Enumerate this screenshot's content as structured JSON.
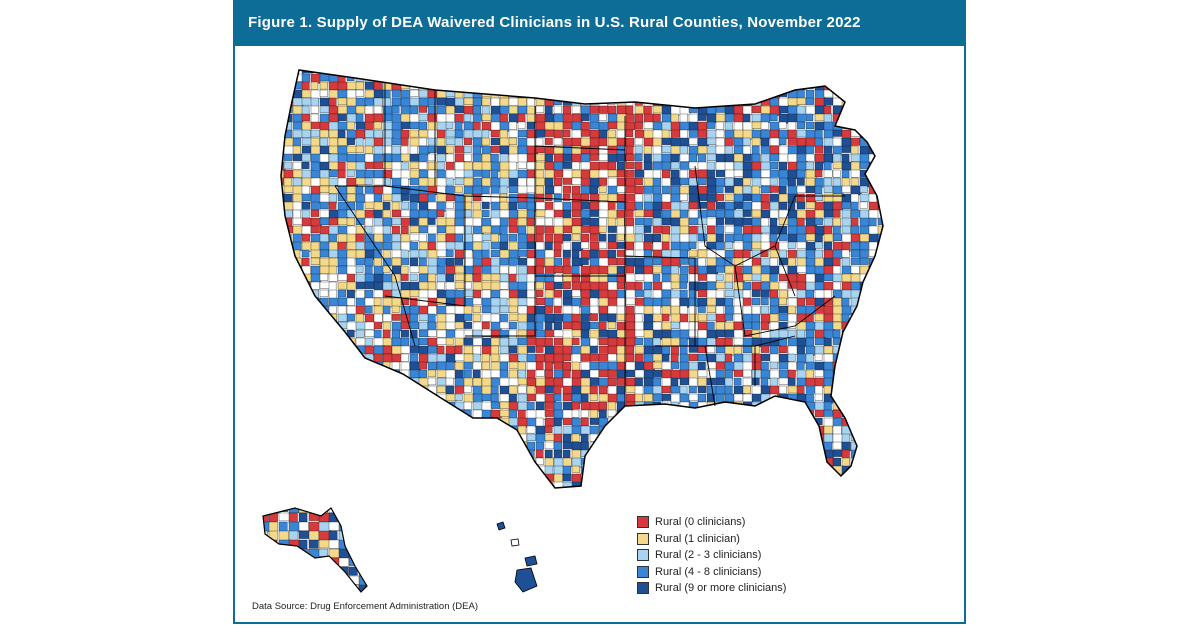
{
  "figure": {
    "title": "Figure 1. Supply of DEA Waivered Clinicians in U.S. Rural Counties, November 2022",
    "source": "Data Source: Drug Enforcement Administration (DEA)"
  },
  "legend": {
    "items": [
      {
        "label": "Rural (0 clinicians)",
        "color": "#d63a3d"
      },
      {
        "label": "Rural (1 clinician)",
        "color": "#f5d98a"
      },
      {
        "label": "Rural (2 - 3 clinicians)",
        "color": "#a8d4f2"
      },
      {
        "label": "Rural (4 - 8 clinicians)",
        "color": "#3a86d6"
      },
      {
        "label": "Rural (9 or more clinicians)",
        "color": "#1f4f94"
      }
    ]
  },
  "map": {
    "outline_color": "#000000",
    "nonrural_color": "#ffffff",
    "regions": [
      "contiguous-us",
      "alaska",
      "hawaii"
    ]
  }
}
